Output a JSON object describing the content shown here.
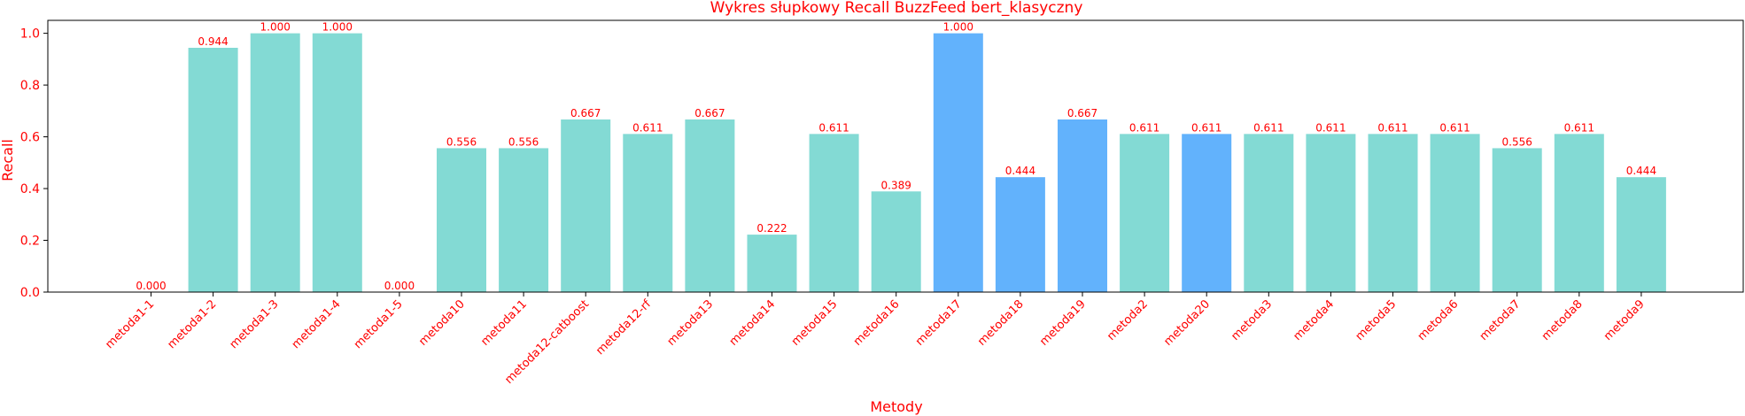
{
  "chart_data": {
    "type": "bar",
    "title": "Wykres słupkowy Recall BuzzFeed bert_klasyczny",
    "xlabel": "Metody",
    "ylabel": "Recall",
    "ylim": [
      0,
      1.05
    ],
    "yticks": [
      "0.0",
      "0.2",
      "0.4",
      "0.6",
      "0.8",
      "1.0"
    ],
    "grid": false,
    "categories": [
      "metoda1-1",
      "metoda1-2",
      "metoda1-3",
      "metoda1-4",
      "metoda1-5",
      "metoda10",
      "metoda11",
      "metoda12-catboost",
      "metoda12-rf",
      "metoda13",
      "metoda14",
      "metoda15",
      "metoda16",
      "metoda17",
      "metoda18",
      "metoda19",
      "metoda2",
      "metoda20",
      "metoda3",
      "metoda4",
      "metoda5",
      "metoda6",
      "metoda7",
      "metoda8",
      "metoda9"
    ],
    "values": [
      0.0,
      0.944,
      1.0,
      1.0,
      0.0,
      0.556,
      0.556,
      0.667,
      0.611,
      0.667,
      0.222,
      0.611,
      0.389,
      1.0,
      0.444,
      0.667,
      0.611,
      0.611,
      0.611,
      0.611,
      0.611,
      0.611,
      0.556,
      0.611,
      0.444
    ],
    "value_labels": [
      "0.000",
      "0.944",
      "1.000",
      "1.000",
      "0.000",
      "0.556",
      "0.556",
      "0.667",
      "0.611",
      "0.667",
      "0.222",
      "0.611",
      "0.389",
      "1.000",
      "0.444",
      "0.667",
      "0.611",
      "0.611",
      "0.611",
      "0.611",
      "0.611",
      "0.611",
      "0.556",
      "0.611",
      "0.444"
    ],
    "highlighted": [
      false,
      false,
      false,
      false,
      false,
      false,
      false,
      false,
      false,
      false,
      false,
      false,
      false,
      true,
      true,
      true,
      false,
      true,
      false,
      false,
      false,
      false,
      false,
      false,
      false
    ],
    "colors": {
      "bar": "#83dad4",
      "highlight": "#62b2fc",
      "text": "#ff0000",
      "axis": "#000000"
    }
  }
}
